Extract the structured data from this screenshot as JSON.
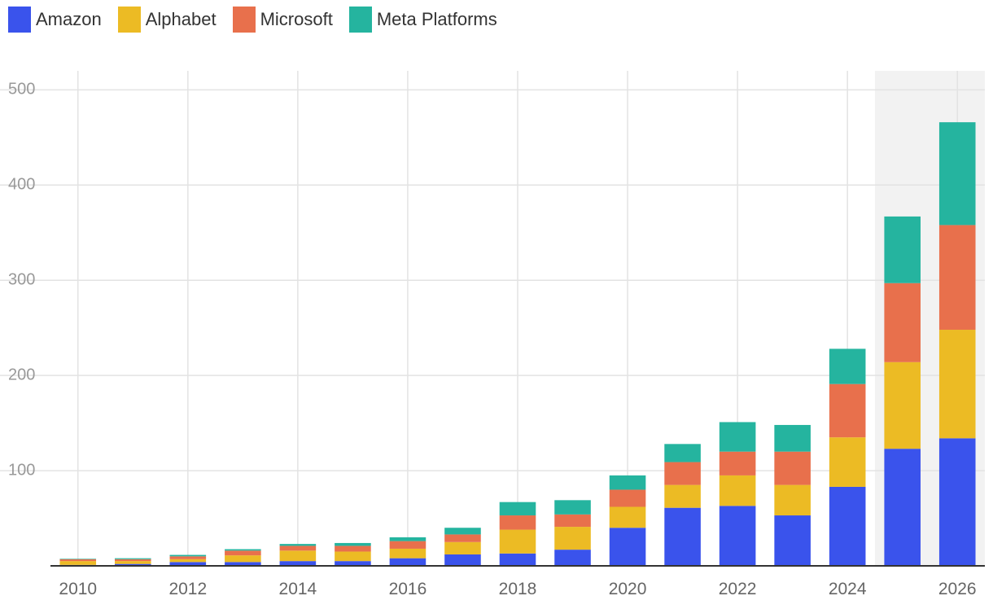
{
  "legend": [
    {
      "name": "Amazon",
      "color": "#3a53ec"
    },
    {
      "name": "Alphabet",
      "color": "#ecbb24"
    },
    {
      "name": "Microsoft",
      "color": "#e8704c"
    },
    {
      "name": "Meta Platforms",
      "color": "#25b49f"
    }
  ],
  "chart_data": {
    "type": "bar",
    "stacked": true,
    "categories": [
      "2010",
      "2011",
      "2012",
      "2013",
      "2014",
      "2015",
      "2016",
      "2017",
      "2018",
      "2019",
      "2020",
      "2021",
      "2022",
      "2023",
      "2024",
      "2025",
      "2026"
    ],
    "x_tick_labels": [
      "2010",
      "2012",
      "2014",
      "2016",
      "2018",
      "2020",
      "2022",
      "2024",
      "2026"
    ],
    "highlighted_categories": [
      "2025",
      "2026"
    ],
    "series": [
      {
        "name": "Amazon",
        "color": "#3a53ec",
        "values": [
          1,
          2,
          4,
          4,
          5,
          5,
          8,
          12,
          13,
          17,
          40,
          61,
          63,
          53,
          83,
          123,
          134
        ]
      },
      {
        "name": "Alphabet",
        "color": "#ecbb24",
        "values": [
          4,
          3,
          3,
          7,
          11,
          10,
          10,
          13,
          25,
          24,
          22,
          24,
          32,
          32,
          52,
          91,
          114
        ]
      },
      {
        "name": "Microsoft",
        "color": "#e8704c",
        "values": [
          2,
          2,
          3,
          5,
          5,
          6,
          8,
          8,
          15,
          13,
          18,
          24,
          25,
          35,
          56,
          83,
          110
        ]
      },
      {
        "name": "Meta Platforms",
        "color": "#25b49f",
        "values": [
          0.5,
          1,
          1.5,
          1.5,
          2,
          3,
          4,
          7,
          14,
          15,
          15,
          19,
          31,
          28,
          37,
          70,
          108
        ]
      }
    ],
    "y_ticks": [
      100,
      200,
      300,
      400,
      500
    ],
    "ylim": [
      0,
      520
    ],
    "grid": true,
    "legend_position": "top-left",
    "title": "",
    "xlabel": "",
    "ylabel": ""
  }
}
